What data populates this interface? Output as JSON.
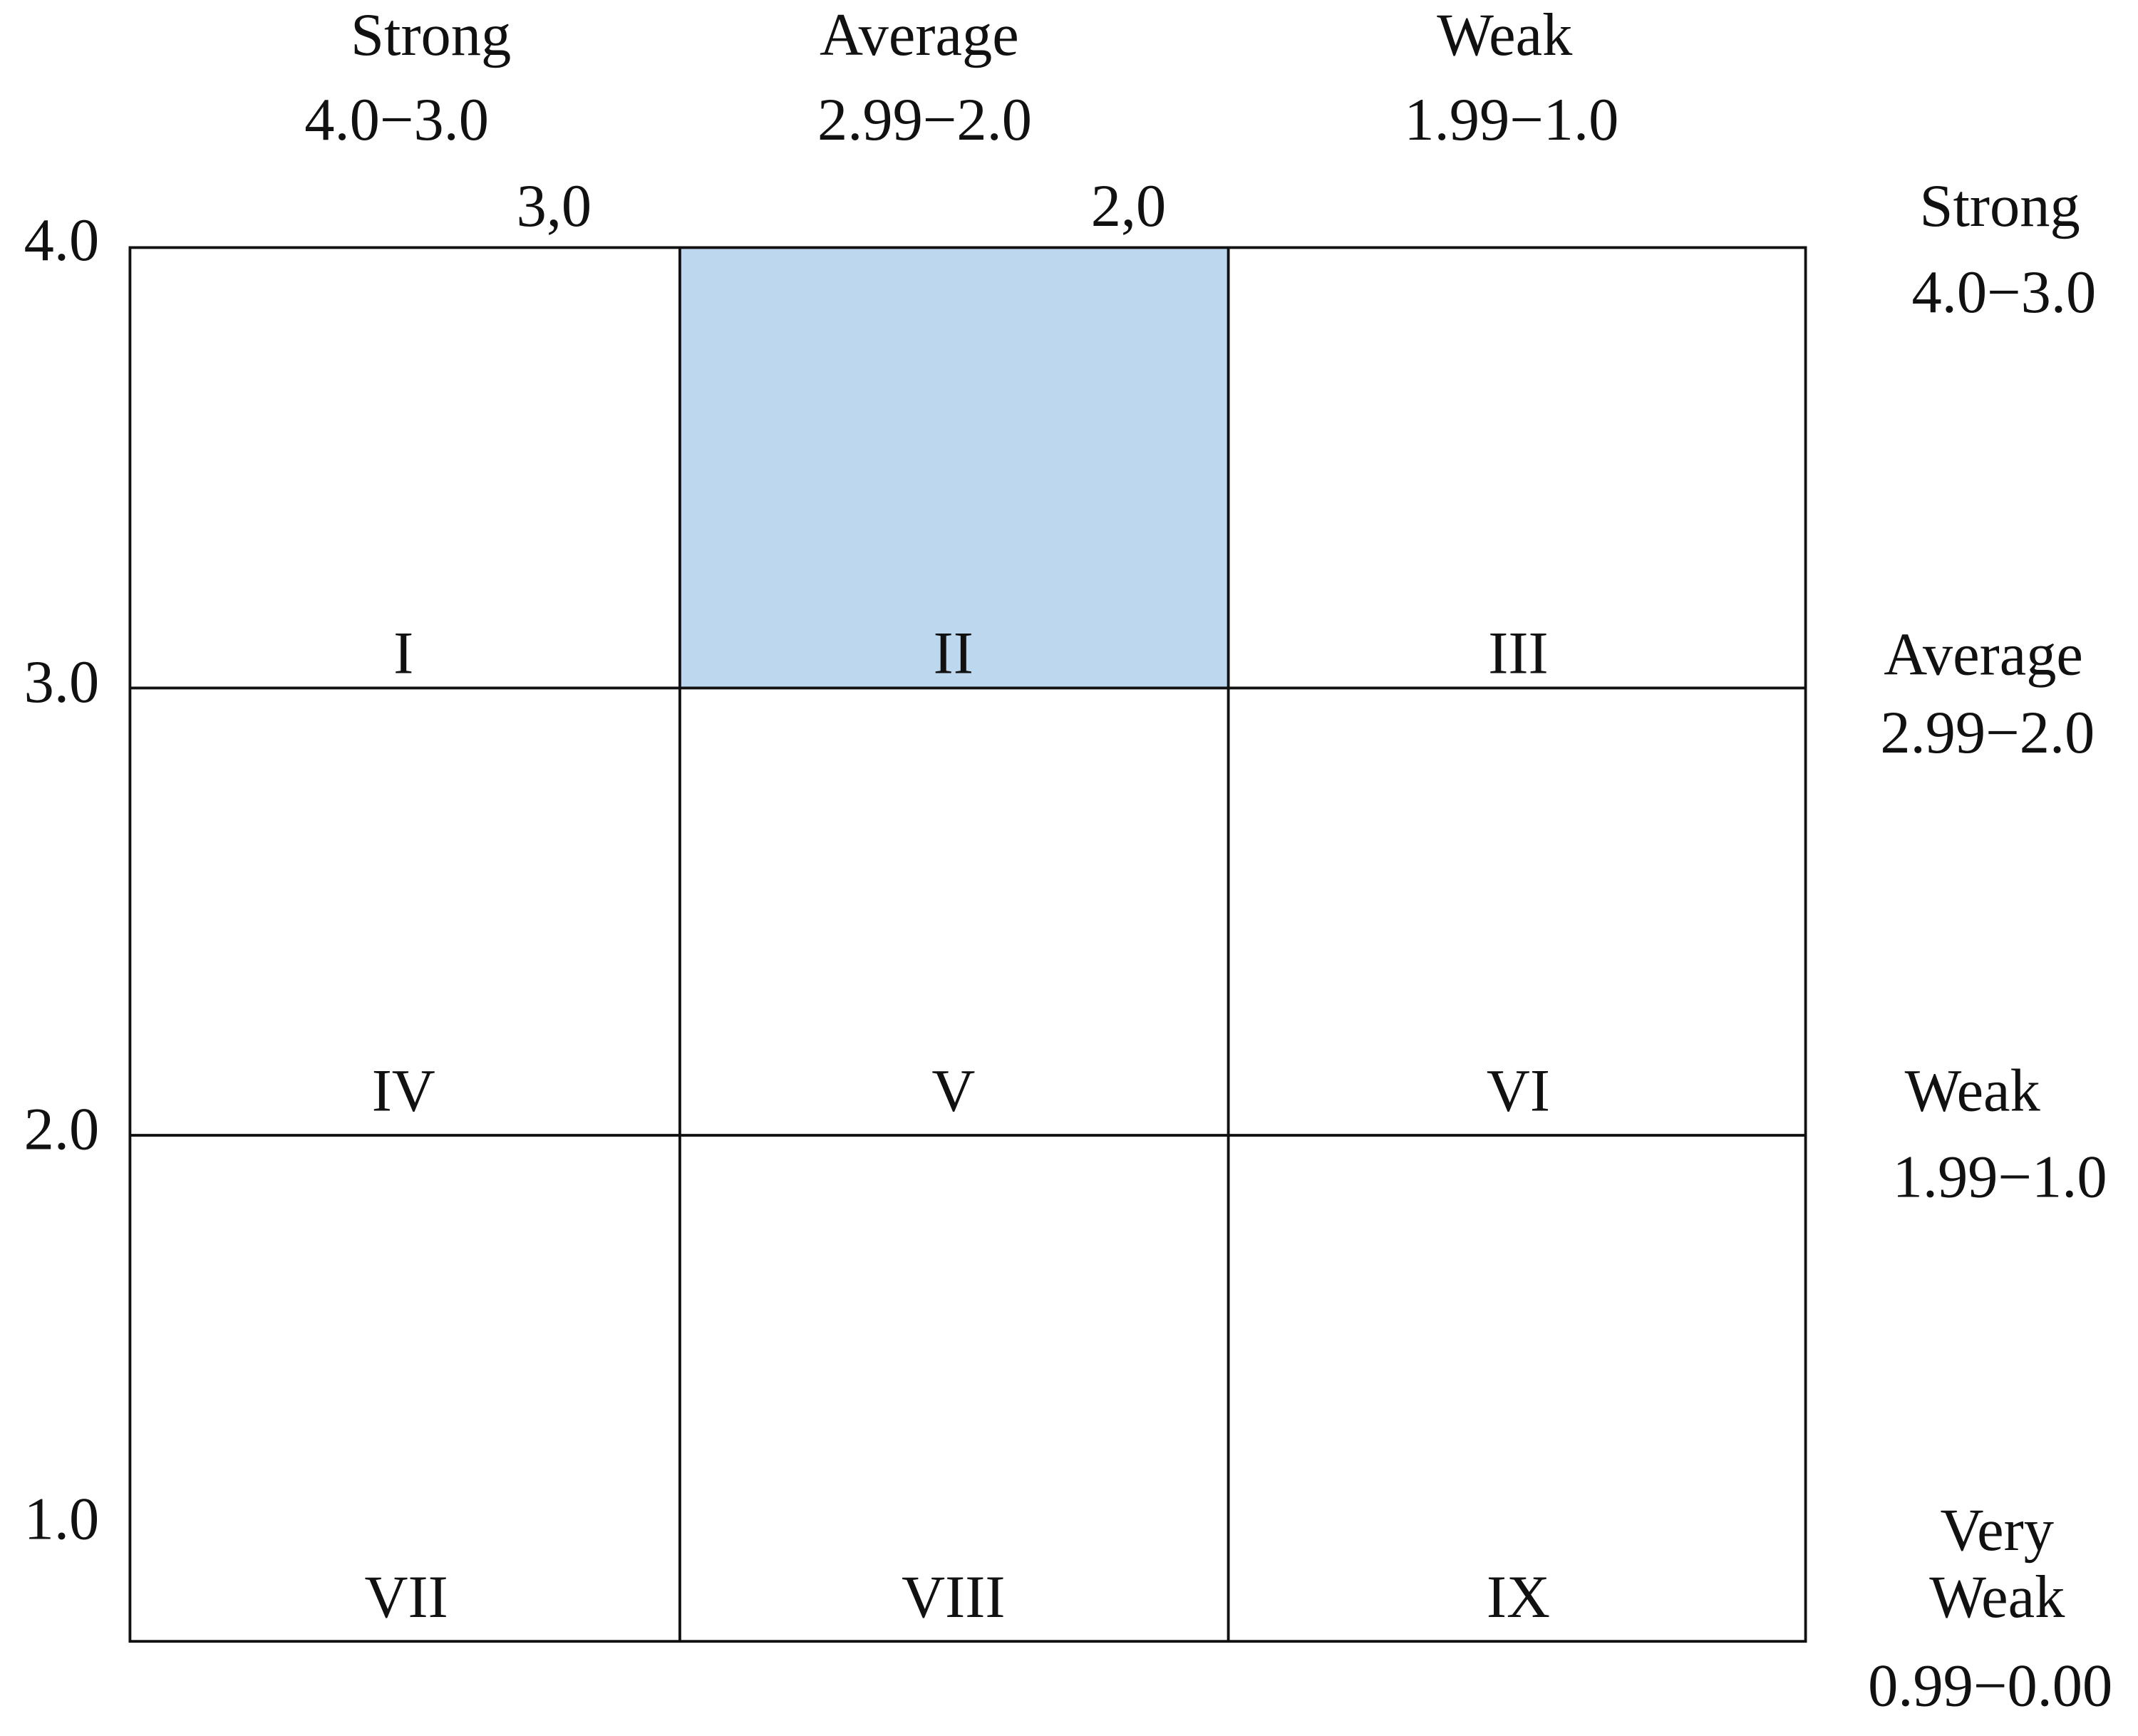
{
  "column_headers": [
    {
      "name": "Strong",
      "range": "4.0−3.0"
    },
    {
      "name": "Average",
      "range": "2.99−2.0"
    },
    {
      "name": "Weak",
      "range": "1.99−1.0"
    }
  ],
  "column_boundaries": [
    "3,0",
    "2,0"
  ],
  "y_axis": [
    "4.0",
    "3.0",
    "2.0",
    "1.0"
  ],
  "row_headers": [
    {
      "name": [
        "Strong"
      ],
      "range": "4.0−3.0"
    },
    {
      "name": [
        "Average"
      ],
      "range": "2.99−2.0"
    },
    {
      "name": [
        "Weak"
      ],
      "range": "1.99−1.0"
    },
    {
      "name": [
        "Very",
        "Weak"
      ],
      "range": "0.99−0.00"
    }
  ],
  "cells": [
    [
      "I",
      "II",
      "III"
    ],
    [
      "IV",
      "V",
      "VI"
    ],
    [
      "VII",
      "VIII",
      "IX"
    ]
  ]
}
